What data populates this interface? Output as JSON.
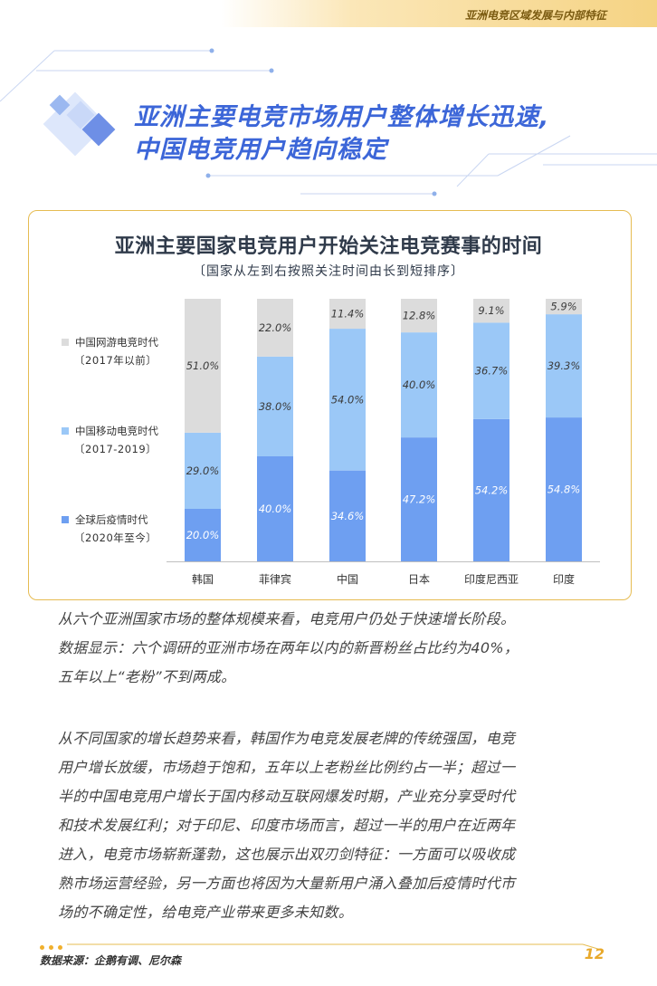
{
  "header": {
    "section_title": "亚洲电竞区域发展与内部特征"
  },
  "page": {
    "title_lines": [
      "亚洲主要电竞市场用户整体增长迅速,",
      "中国电竞用户趋向稳定"
    ],
    "paragraphs": [
      [
        "从六个亚洲国家市场的整体规模来看，电竞用户仍处于快速增长阶段。",
        "数据显示：六个调研的亚洲市场在两年以内的新晋粉丝占比约为40%，",
        "五年以上“老粉”不到两成。"
      ],
      [
        "从不同国家的增长趋势来看，韩国作为电竞发展老牌的传统强国，电竞",
        "用户增长放缓，市场趋于饱和，五年以上老粉丝比例约占一半；超过一",
        "半的中国电竞用户增长于国内移动互联网爆发时期，产业充分享受时代",
        "和技术发展红利；对于印尼、印度市场而言，超过一半的用户在近两年",
        "进入，电竞市场崭新蓬勃，这也展示出双刃剑特征：一方面可以吸收成",
        "熟市场运营经验，另一方面也将因为大量新用户涌入叠加后疫情时代市",
        "场的不确定性，给电竞产业带来更多未知数。"
      ]
    ]
  },
  "footer": {
    "source": "数据来源：企鹅有调、尼尔森",
    "page_number": "12"
  },
  "colors": {
    "accent": "#3c66d8",
    "gold": "#e6bc52",
    "eSports_gray": "#dcdcdc",
    "mobile_blue": "#9bc8f7",
    "post_blue": "#6e9ff1"
  },
  "chart_data": {
    "type": "bar",
    "stacked": true,
    "title": "亚洲主要国家电竞用户开始关注电竞赛事的时间",
    "subtitle": "〔国家从左到右按照关注时间由长到短排序〕",
    "categories": [
      "韩国",
      "菲律宾",
      "中国",
      "日本",
      "印度尼西亚",
      "印度"
    ],
    "ylim": [
      0,
      100
    ],
    "grid": false,
    "legend_position": "left",
    "series": [
      {
        "name": "全球后疫情时代",
        "range": "〔2020年至今〕",
        "color": "#6e9ff1",
        "values": [
          20.0,
          40.0,
          34.6,
          47.2,
          54.2,
          54.8
        ],
        "labels": [
          "20.0%",
          "40.0%",
          "34.6%",
          "47.2%",
          "54.2%",
          "54.8%"
        ]
      },
      {
        "name": "中国移动电竞时代",
        "range": "〔2017-2019〕",
        "color": "#9bc8f7",
        "values": [
          29.0,
          38.0,
          54.0,
          40.0,
          36.7,
          39.3
        ],
        "labels": [
          "29.0%",
          "38.0%",
          "54.0%",
          "40.0%",
          "36.7%",
          "39.3%"
        ]
      },
      {
        "name": "中国网游电竞时代",
        "range": "〔2017年以前〕",
        "color": "#dcdcdc",
        "values": [
          51.0,
          22.0,
          11.4,
          12.8,
          9.1,
          5.9
        ],
        "labels": [
          "51.0%",
          "22.0%",
          "11.4%",
          "12.8%",
          "9.1%",
          "5.9%"
        ]
      }
    ]
  }
}
